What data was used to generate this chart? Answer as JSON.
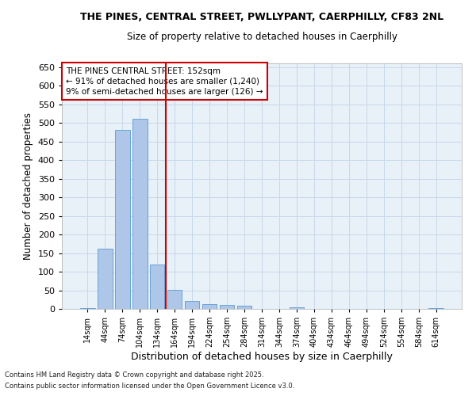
{
  "title_line1": "THE PINES, CENTRAL STREET, PWLLYPANT, CAERPHILLY, CF83 2NL",
  "title_line2": "Size of property relative to detached houses in Caerphilly",
  "xlabel": "Distribution of detached houses by size in Caerphilly",
  "ylabel": "Number of detached properties",
  "categories": [
    "14sqm",
    "44sqm",
    "74sqm",
    "104sqm",
    "134sqm",
    "164sqm",
    "194sqm",
    "224sqm",
    "254sqm",
    "284sqm",
    "314sqm",
    "344sqm",
    "374sqm",
    "404sqm",
    "434sqm",
    "464sqm",
    "494sqm",
    "524sqm",
    "554sqm",
    "584sqm",
    "614sqm"
  ],
  "values": [
    3,
    161,
    482,
    510,
    120,
    52,
    22,
    13,
    11,
    8,
    0,
    0,
    5,
    0,
    0,
    0,
    0,
    0,
    0,
    0,
    3
  ],
  "bar_color": "#aec6e8",
  "bar_edge_color": "#5b9bd5",
  "grid_color": "#c8d8ea",
  "background_color": "#e8f0f8",
  "annotation_title": "THE PINES CENTRAL STREET: 152sqm",
  "annotation_line1": "← 91% of detached houses are smaller (1,240)",
  "annotation_line2": "9% of semi-detached houses are larger (126) →",
  "annotation_box_facecolor": "#ffffff",
  "annotation_box_edgecolor": "#cc0000",
  "vline_color": "#cc0000",
  "vline_x": 4.5,
  "footnote1": "Contains HM Land Registry data © Crown copyright and database right 2025.",
  "footnote2": "Contains public sector information licensed under the Open Government Licence v3.0.",
  "ylim": [
    0,
    660
  ],
  "yticks": [
    0,
    50,
    100,
    150,
    200,
    250,
    300,
    350,
    400,
    450,
    500,
    550,
    600,
    650
  ]
}
